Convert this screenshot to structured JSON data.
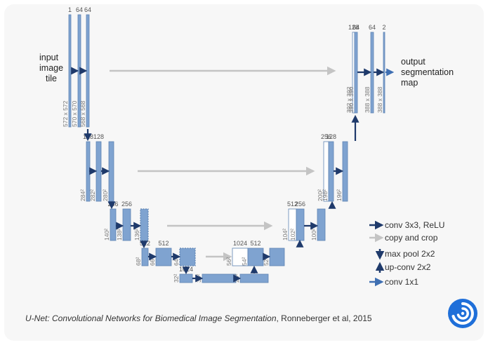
{
  "labels": {
    "input": [
      "input",
      "image",
      "tile"
    ],
    "output": [
      "output",
      "segmentation",
      "map"
    ]
  },
  "blocks": [
    {
      "id": "l1a",
      "channels": "1",
      "size": "572 x 572"
    },
    {
      "id": "l1b",
      "channels": "64",
      "size": "570 x 570"
    },
    {
      "id": "l1c",
      "channels": "64",
      "size": "568 x 568"
    },
    {
      "id": "l2a",
      "channels": "128",
      "size": "284²"
    },
    {
      "id": "l2b",
      "channels": "128",
      "size": "282²"
    },
    {
      "id": "l2c",
      "channels": "",
      "size": "280²"
    },
    {
      "id": "l3a",
      "channels": "256",
      "size": "140²"
    },
    {
      "id": "l3b",
      "channels": "256",
      "size": "138²"
    },
    {
      "id": "l3c",
      "channels": "",
      "size": "136²"
    },
    {
      "id": "l4a",
      "channels": "512",
      "size": "68²"
    },
    {
      "id": "l4b",
      "channels": "512",
      "size": "66²"
    },
    {
      "id": "l4c",
      "channels": "",
      "size": "64²"
    },
    {
      "id": "l5a",
      "channels": "1024",
      "size": "32²"
    },
    {
      "id": "l5b",
      "channels": "",
      "size": "30²"
    },
    {
      "id": "l5c",
      "channels": "",
      "size": "28²"
    },
    {
      "id": "r4a",
      "channels": "1024",
      "size": "56²"
    },
    {
      "id": "r4b",
      "channels": "512",
      "size": "54²"
    },
    {
      "id": "r4c",
      "channels": "",
      "size": "52²"
    },
    {
      "id": "r3a",
      "channels": "512",
      "size": "104²"
    },
    {
      "id": "r3b",
      "channels": "256",
      "size": "102²"
    },
    {
      "id": "r3c",
      "channels": "",
      "size": "100²"
    },
    {
      "id": "r2a",
      "channels": "256",
      "size": "200²"
    },
    {
      "id": "r2b",
      "channels": "128",
      "size": "198²"
    },
    {
      "id": "r2c",
      "channels": "",
      "size": "196²"
    },
    {
      "id": "r1a",
      "channels": "128",
      "size": "392 x 392"
    },
    {
      "id": "r1b",
      "channels": "64",
      "size": "390 x 390"
    },
    {
      "id": "r1c",
      "channels": "64",
      "size": "388 x 388"
    },
    {
      "id": "r1d",
      "channels": "2",
      "size": "388 x 388"
    }
  ],
  "legend": [
    {
      "label": "conv 3x3, ReLU",
      "icon": "arrow-right-dark-icon"
    },
    {
      "label": "copy and crop",
      "icon": "arrow-right-gray-icon"
    },
    {
      "label": "max pool 2x2",
      "icon": "arrow-down-dark-icon"
    },
    {
      "label": "up-conv 2x2",
      "icon": "arrow-up-dark-icon"
    },
    {
      "label": "conv 1x1",
      "icon": "arrow-right-blue-icon"
    }
  ],
  "caption": {
    "title": "U-Net: Convolutional Networks for Biomedical Image Segmentation",
    "rest": ", Ronneberger et al, 2015"
  },
  "colors": {
    "block": "#7fa3d0",
    "block_edge": "#5f84b3",
    "arrow_dark": "#1f3a6b",
    "arrow_gray": "#c4c4c4",
    "arrow_blue": "#3f6fb2",
    "logo": "#1f6fd9"
  },
  "logo": {
    "icon": "spiral-logo-icon"
  }
}
